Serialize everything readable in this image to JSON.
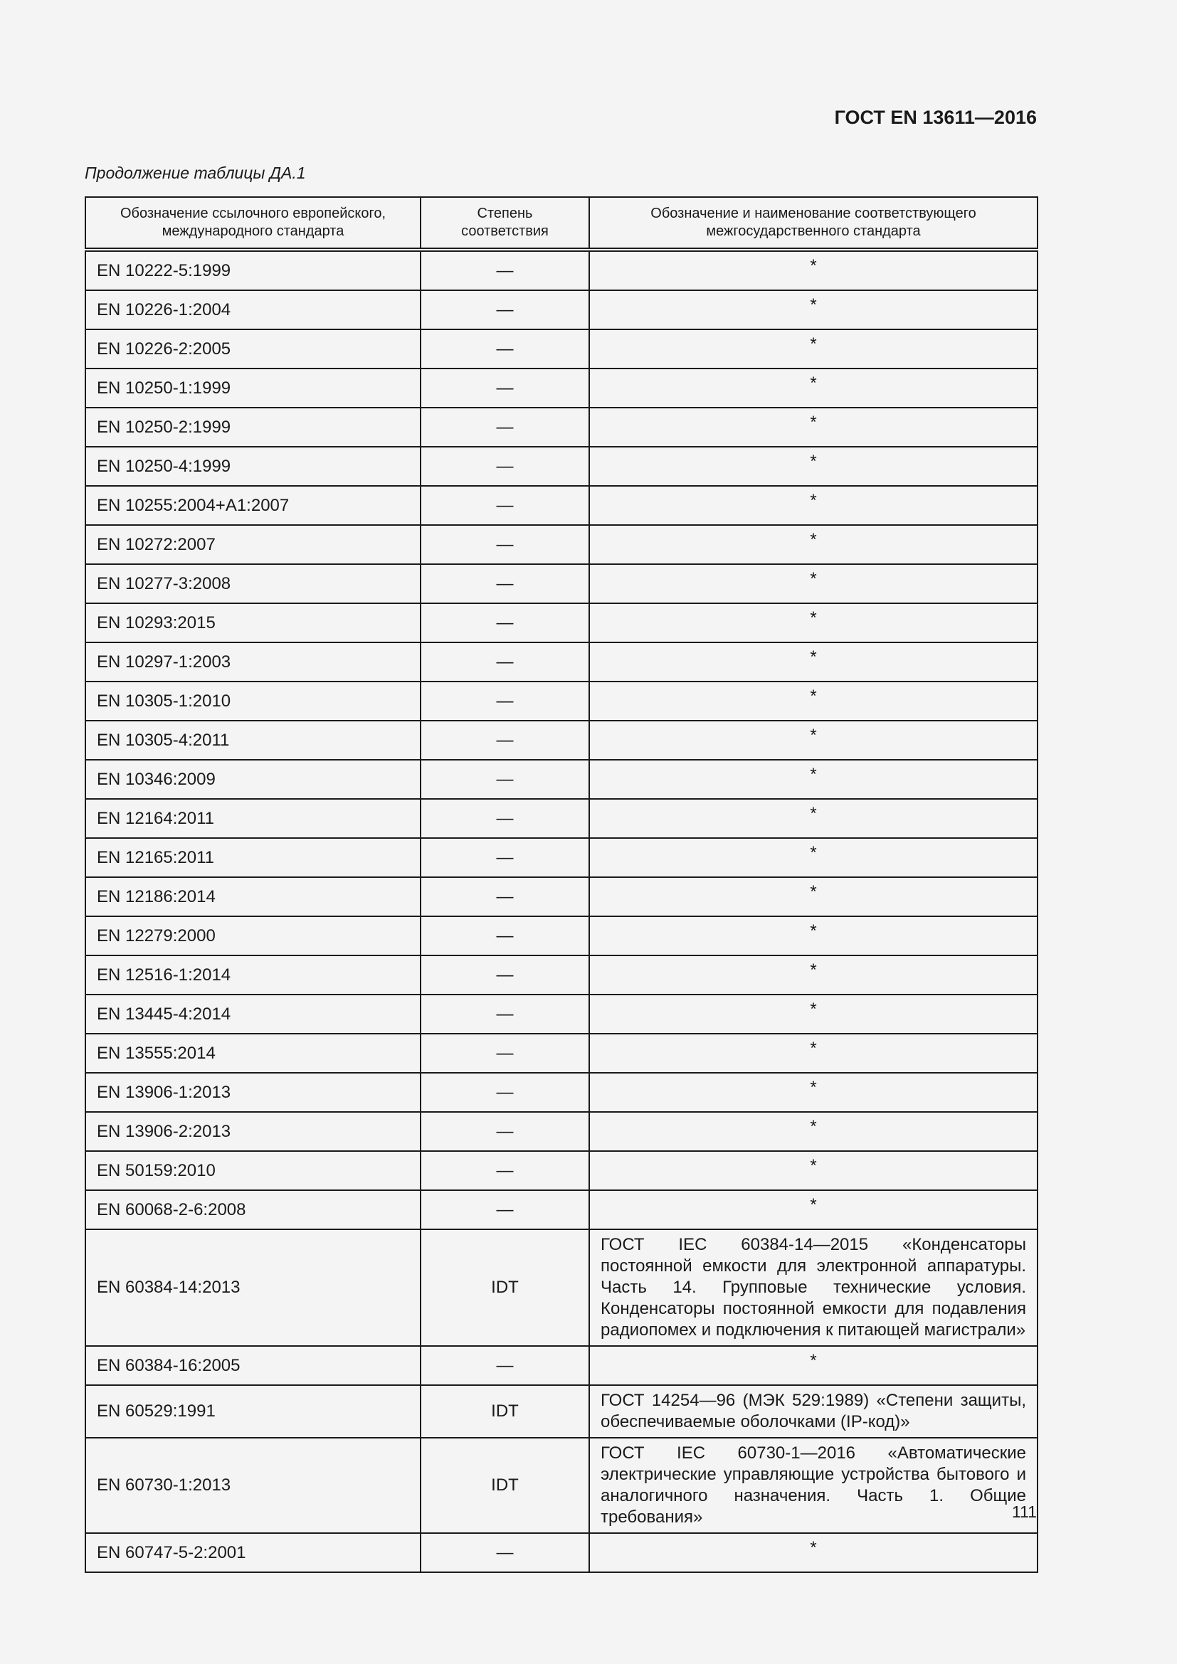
{
  "header": {
    "doc_id": "ГОСТ EN 13611—2016",
    "caption": "Продолжение таблицы ДА.1"
  },
  "table": {
    "columns": [
      "Обозначение ссылочного европейского, международного стандарта",
      "Степень соответствия",
      "Обозначение и наименование соответствующего межгосударственного стандарта"
    ],
    "rows": [
      [
        "EN 10222-5:1999",
        "—",
        "*"
      ],
      [
        "EN 10226-1:2004",
        "—",
        "*"
      ],
      [
        "EN 10226-2:2005",
        "—",
        "*"
      ],
      [
        "EN 10250-1:1999",
        "—",
        "*"
      ],
      [
        "EN 10250-2:1999",
        "—",
        "*"
      ],
      [
        "EN 10250-4:1999",
        "—",
        "*"
      ],
      [
        "EN 10255:2004+A1:2007",
        "—",
        "*"
      ],
      [
        "EN 10272:2007",
        "—",
        "*"
      ],
      [
        "EN 10277-3:2008",
        "—",
        "*"
      ],
      [
        "EN 10293:2015",
        "—",
        "*"
      ],
      [
        "EN 10297-1:2003",
        "—",
        "*"
      ],
      [
        "EN 10305-1:2010",
        "—",
        "*"
      ],
      [
        "EN 10305-4:2011",
        "—",
        "*"
      ],
      [
        "EN 10346:2009",
        "—",
        "*"
      ],
      [
        "EN 12164:2011",
        "—",
        "*"
      ],
      [
        "EN 12165:2011",
        "—",
        "*"
      ],
      [
        "EN 12186:2014",
        "—",
        "*"
      ],
      [
        "EN 12279:2000",
        "—",
        "*"
      ],
      [
        "EN 12516-1:2014",
        "—",
        "*"
      ],
      [
        "EN 13445-4:2014",
        "—",
        "*"
      ],
      [
        "EN 13555:2014",
        "—",
        "*"
      ],
      [
        "EN 13906-1:2013",
        "—",
        "*"
      ],
      [
        "EN 13906-2:2013",
        "—",
        "*"
      ],
      [
        "EN 50159:2010",
        "—",
        "*"
      ],
      [
        "EN 60068-2-6:2008",
        "—",
        "*"
      ],
      [
        "EN 60384-14:2013",
        "IDT",
        "ГОСТ IEC 60384-14—2015 «Конденсаторы постоянной емкости для электронной аппаратуры. Часть 14. Групповые технические условия. Конденсаторы постоянной емкости для подавления радиопомех и подключения к питающей магистрали»"
      ],
      [
        "EN 60384-16:2005",
        "—",
        "*"
      ],
      [
        "EN 60529:1991",
        "IDT",
        "ГОСТ 14254—96 (МЭК 529:1989) «Степени защиты, обеспечиваемые оболочками (IP-код)»"
      ],
      [
        "EN 60730-1:2013",
        "IDT",
        "ГОСТ IEC 60730-1—2016 «Автоматические электрические управляющие устройства бытового и аналогичного назначения. Часть 1. Общие требования»"
      ],
      [
        "EN 60747-5-2:2001",
        "—",
        "*"
      ]
    ]
  },
  "footer": {
    "page_number": "111"
  }
}
